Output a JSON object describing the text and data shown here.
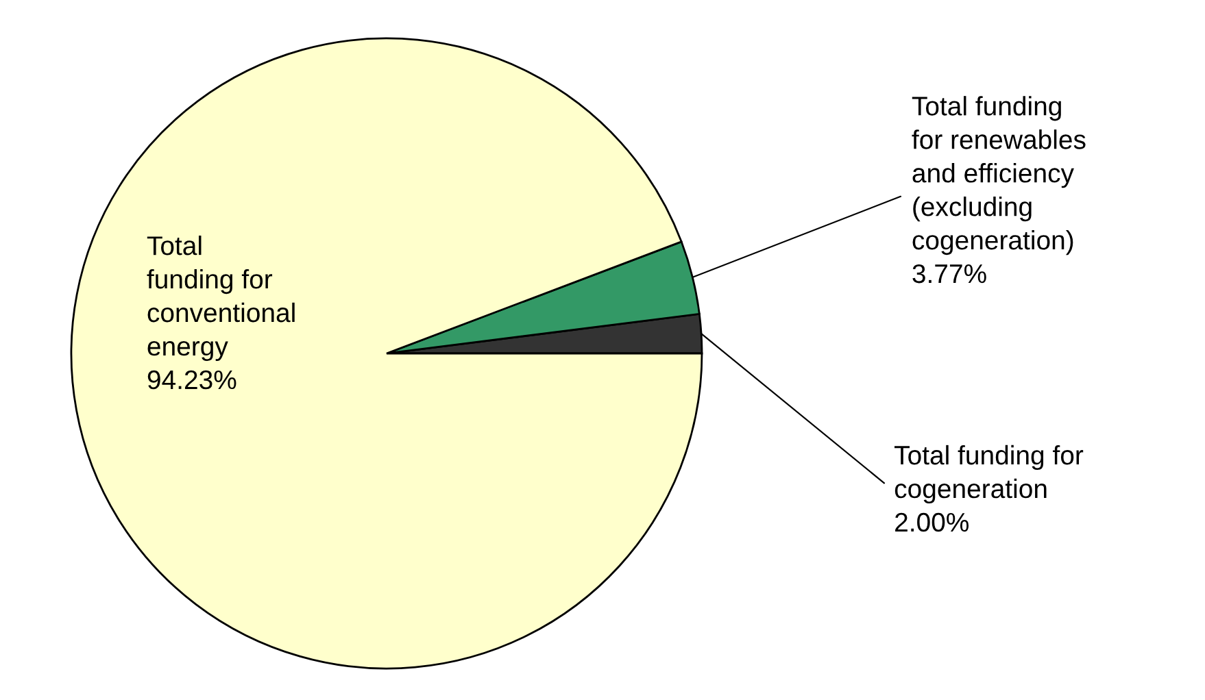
{
  "chart_data": {
    "type": "pie",
    "categories": [
      "Total funding for\ncogeneration",
      "Total funding\nfor renewables\nand efficiency\n(excluding\ncogeneration)",
      "Total\nfunding for\nconventional\nenergy"
    ],
    "values": [
      2.0,
      3.77,
      94.23
    ],
    "value_labels": [
      "2.00%",
      "3.77%",
      "94.23%"
    ],
    "colors": [
      "#333333",
      "#339966",
      "#ffffcc"
    ]
  }
}
